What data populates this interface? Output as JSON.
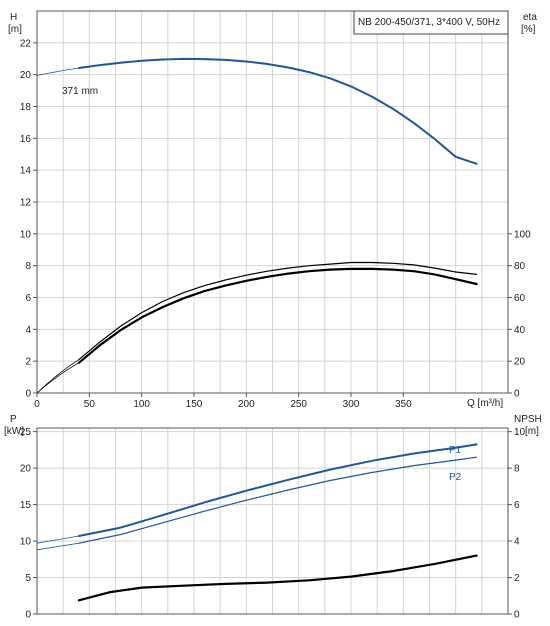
{
  "chart_data": [
    {
      "id": "qh_eta",
      "type": "line",
      "title": "NB 200-450/371, 3*400 V, 50Hz",
      "x_label": "Q [m³/h]",
      "y_left_label": [
        "H",
        "[m]"
      ],
      "y_right_label": [
        "eta",
        "[%]"
      ],
      "x_ticks": [
        0,
        50,
        100,
        150,
        200,
        250,
        300,
        350
      ],
      "x_range": [
        0,
        450
      ],
      "y_left_range": [
        0,
        24
      ],
      "y_left_ticks": [
        0,
        2,
        4,
        6,
        8,
        10,
        12,
        14,
        16,
        18,
        20,
        22
      ],
      "y_right_range": [
        0,
        240
      ],
      "y_right_ticks": [
        0,
        20,
        40,
        60,
        80,
        100
      ],
      "grid": true,
      "annotations": [
        "371 mm"
      ],
      "series": [
        {
          "name": "H",
          "axis": "left",
          "color": "#1f5797",
          "width": 2,
          "x": [
            40,
            60,
            80,
            100,
            120,
            140,
            160,
            180,
            200,
            220,
            240,
            260,
            280,
            300,
            320,
            340,
            360,
            380,
            400,
            420
          ],
          "y": [
            20.42,
            20.6,
            20.75,
            20.87,
            20.95,
            20.99,
            20.98,
            20.93,
            20.83,
            20.67,
            20.45,
            20.16,
            19.77,
            19.26,
            18.62,
            17.86,
            16.97,
            15.96,
            14.84,
            14.4
          ]
        },
        {
          "name": "H extrapolated",
          "axis": "left",
          "color": "#1f5797",
          "width": 0.8,
          "x": [
            0,
            10,
            20,
            30,
            40
          ],
          "y": [
            19.95,
            20.08,
            20.2,
            20.32,
            20.42
          ]
        },
        {
          "name": "eta",
          "axis": "right",
          "color": "#000000",
          "width": 2.2,
          "x": [
            40,
            60,
            80,
            100,
            120,
            140,
            160,
            180,
            200,
            220,
            240,
            260,
            280,
            300,
            320,
            340,
            360,
            380,
            400,
            420
          ],
          "y": [
            19,
            30,
            39.5,
            47.5,
            54,
            59.5,
            64,
            67.5,
            70.5,
            73,
            75,
            76.5,
            77.5,
            78,
            78,
            77.5,
            76.5,
            74.5,
            71.5,
            68.5
          ]
        },
        {
          "name": "eta upper",
          "axis": "right",
          "color": "#000000",
          "width": 1.2,
          "x": [
            40,
            60,
            80,
            100,
            120,
            140,
            160,
            180,
            200,
            220,
            240,
            260,
            280,
            300,
            320,
            340,
            360,
            380,
            400,
            420
          ],
          "y": [
            21,
            32,
            42,
            50.5,
            57.5,
            63,
            67.5,
            71,
            74,
            76.5,
            78.5,
            80,
            81,
            82,
            82,
            81.5,
            80.5,
            78.5,
            76,
            74.5
          ]
        },
        {
          "name": "eta extrapolated",
          "axis": "right",
          "color": "#000000",
          "width": 0.7,
          "x": [
            0,
            10,
            20,
            30,
            40
          ],
          "y": [
            0,
            5.5,
            10.5,
            15,
            19
          ]
        },
        {
          "name": "eta upper extrapolated",
          "axis": "right",
          "color": "#000000",
          "width": 0.7,
          "x": [
            0,
            10,
            20,
            30,
            40
          ],
          "y": [
            0,
            6,
            11.5,
            16.5,
            21
          ]
        }
      ]
    },
    {
      "id": "power_npsh",
      "type": "line",
      "title": "",
      "x_range": [
        0,
        450
      ],
      "x_ticks": [
        0,
        50,
        100,
        150,
        200,
        250,
        300,
        350
      ],
      "y_left_label": [
        "P",
        "[kW]"
      ],
      "y_right_label": [
        "NPSH",
        "[m]"
      ],
      "y_left_range": [
        0,
        25.5
      ],
      "y_left_ticks": [
        0,
        5,
        10,
        15,
        20,
        25
      ],
      "y_right_range": [
        0,
        10.2
      ],
      "y_right_ticks": [
        0,
        2,
        4,
        6,
        8,
        10
      ],
      "grid": true,
      "series": [
        {
          "name": "P1",
          "axis": "left",
          "color": "#1f5797",
          "width": 2,
          "x": [
            40,
            80,
            120,
            160,
            200,
            240,
            280,
            320,
            360,
            400,
            420
          ],
          "y": [
            10.7,
            11.85,
            13.55,
            15.3,
            16.9,
            18.4,
            19.8,
            21.0,
            22.0,
            22.8,
            23.25
          ]
        },
        {
          "name": "P1 extrapolated",
          "axis": "left",
          "color": "#1f5797",
          "width": 0.8,
          "x": [
            0,
            20,
            40
          ],
          "y": [
            9.7,
            10.2,
            10.7
          ]
        },
        {
          "name": "P2",
          "axis": "left",
          "color": "#1f5797",
          "width": 1.2,
          "x": [
            40,
            80,
            120,
            160,
            200,
            240,
            280,
            320,
            360,
            400,
            420
          ],
          "y": [
            9.7,
            10.9,
            12.5,
            14.1,
            15.6,
            17.0,
            18.3,
            19.4,
            20.35,
            21.1,
            21.5
          ]
        },
        {
          "name": "P2 extrapolated",
          "axis": "left",
          "color": "#1f5797",
          "width": 0.8,
          "x": [
            0,
            20,
            40
          ],
          "y": [
            8.8,
            9.25,
            9.7
          ]
        },
        {
          "name": "NPSH",
          "axis": "right",
          "color": "#000000",
          "width": 2.2,
          "x": [
            40,
            70,
            100,
            140,
            180,
            220,
            260,
            300,
            340,
            380,
            420
          ],
          "y": [
            0.75,
            1.2,
            1.45,
            1.55,
            1.65,
            1.72,
            1.85,
            2.05,
            2.35,
            2.75,
            3.2
          ]
        }
      ],
      "labels": [
        {
          "text": "P1",
          "series": "P1"
        },
        {
          "text": "P2",
          "series": "P2"
        }
      ]
    }
  ]
}
